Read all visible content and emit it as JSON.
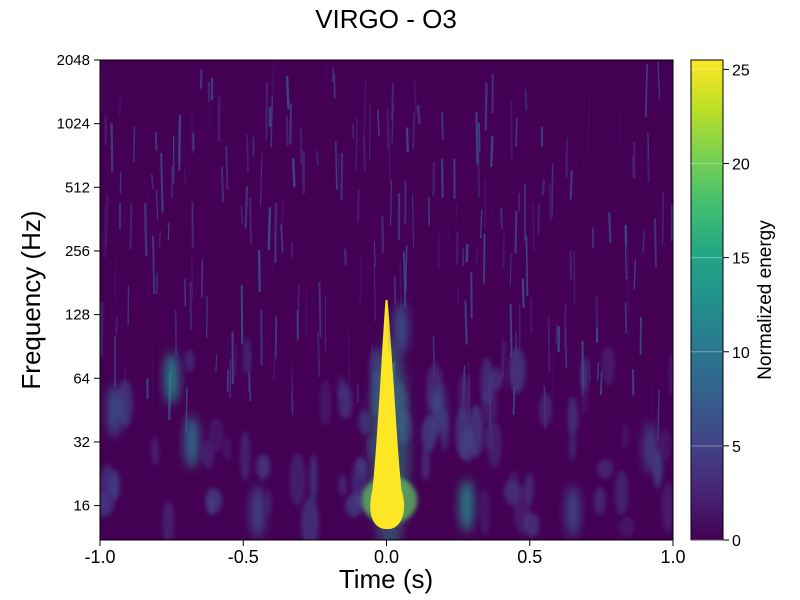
{
  "chart_data": {
    "type": "heatmap",
    "title": "VIRGO - O3",
    "xlabel": "Time (s)",
    "ylabel": "Frequency (Hz)",
    "xlim": [
      -1.0,
      1.0
    ],
    "ylim": [
      11,
      2048
    ],
    "yscale": "log2",
    "x_ticks": [
      -1.0,
      -0.5,
      0.0,
      0.5,
      1.0
    ],
    "x_tick_labels": [
      "-1.0",
      "-0.5",
      "0.0",
      "0.5",
      "1.0"
    ],
    "y_ticks": [
      16,
      32,
      64,
      128,
      256,
      512,
      1024,
      2048
    ],
    "y_tick_labels": [
      "16",
      "32",
      "64",
      "128",
      "256",
      "512",
      "1024",
      "2048"
    ],
    "colorbar": {
      "label": "Normalized energy",
      "range": [
        0,
        25.5
      ],
      "ticks": [
        0,
        5,
        10,
        15,
        20,
        25
      ],
      "tick_labels": [
        "0",
        "5",
        "10",
        "15",
        "20",
        "25"
      ],
      "colormap": "viridis"
    },
    "background_color": "#440154",
    "features": [
      {
        "kind": "event",
        "t": 0.0,
        "f_low": 12,
        "f_high": 150,
        "peak_energy": 25.5,
        "f_peak": 17
      },
      {
        "kind": "blob",
        "t": -0.75,
        "f": 64,
        "energy": 12
      },
      {
        "kind": "blob",
        "t": -0.68,
        "f": 32,
        "energy": 10
      },
      {
        "kind": "blob",
        "t": -0.95,
        "f": 45,
        "energy": 7
      },
      {
        "kind": "blob",
        "t": 0.28,
        "f": 16,
        "energy": 12
      },
      {
        "kind": "blob",
        "t": -0.45,
        "f": 15,
        "energy": 6
      },
      {
        "kind": "blob",
        "t": 0.18,
        "f": 45,
        "energy": 6
      },
      {
        "kind": "blob",
        "t": 0.65,
        "f": 15,
        "energy": 6
      },
      {
        "kind": "blob",
        "t": 0.92,
        "f": 30,
        "energy": 5
      },
      {
        "kind": "blob",
        "t": 0.05,
        "f": 110,
        "energy": 7
      }
    ]
  }
}
